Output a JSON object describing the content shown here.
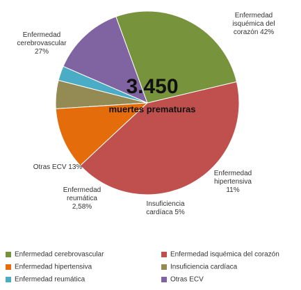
{
  "chart_data": {
    "type": "pie",
    "center_title": "3.450",
    "center_subtitle": "muertes prematuras",
    "categories": [
      "Enfermedad cerebrovascular",
      "Enfermedad isquémica del corazón",
      "Enfermedad hipertensiva",
      "Insuficiencia cardíaca",
      "Enfermedad reumática",
      "Otras ECV"
    ],
    "values": [
      27,
      42,
      11,
      5,
      2.58,
      13
    ],
    "value_labels": [
      "27%",
      "42%",
      "11%",
      "5%",
      "2,58%",
      "13%"
    ],
    "label_lines": [
      [
        "Enfermedad",
        "cerebrovascular"
      ],
      [
        "Enfermedad",
        "isquémica del",
        "corazón"
      ],
      [
        "Enfermedad",
        "hipertensiva"
      ],
      [
        "Insuficiencia",
        "cardíaca"
      ],
      [
        "Enfermedad",
        "reumática"
      ],
      [
        "Otras ECV"
      ]
    ],
    "value_inline": [
      false,
      true,
      false,
      true,
      false,
      true
    ],
    "colors": [
      "#77933c",
      "#c0504d",
      "#e46c0a",
      "#948a54",
      "#4bacc6",
      "#8064a2"
    ],
    "legend": "bottom"
  }
}
